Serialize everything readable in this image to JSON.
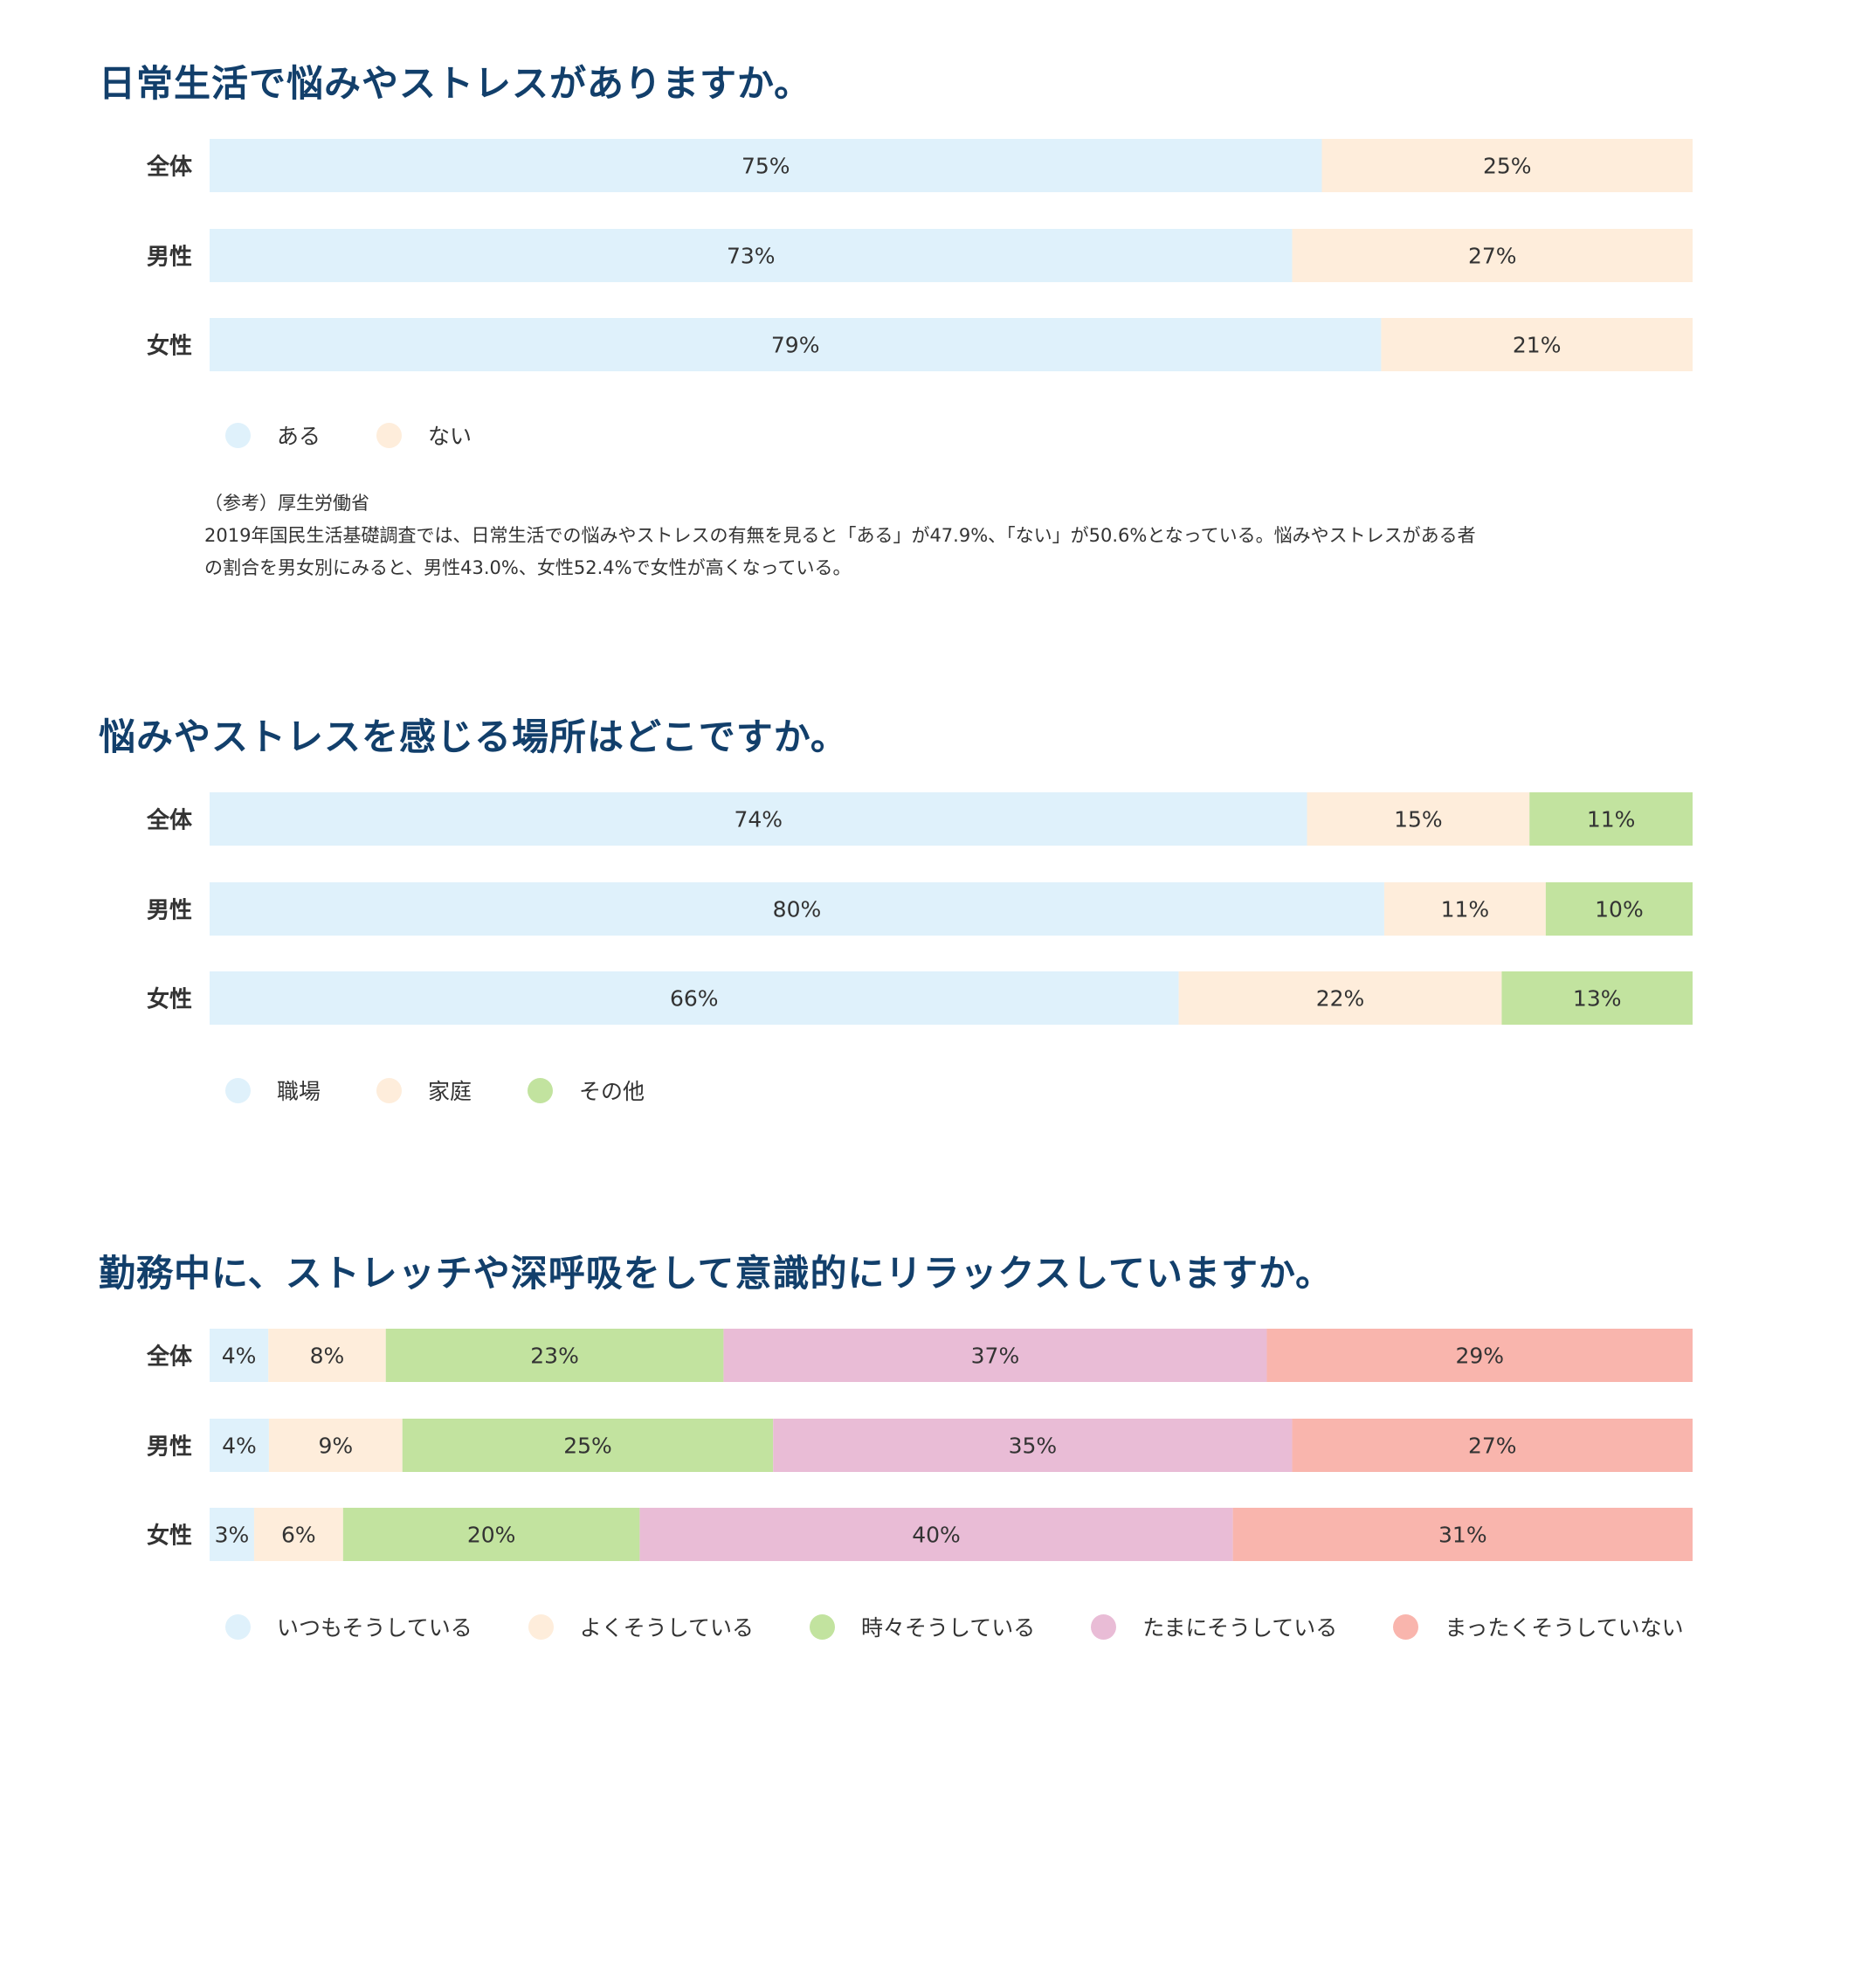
{
  "colors": {
    "title": "#123f6b",
    "light_blue": "#dff1fb",
    "peach": "#feeddb",
    "green": "#c2e39f",
    "pink": "#e9bcd6",
    "salmon": "#f9b5ad"
  },
  "chart_data": [
    {
      "type": "bar",
      "orientation": "horizontal",
      "stacked": true,
      "title": "日常生活で悩みやストレスがありますか。",
      "categories": [
        "全体",
        "男性",
        "女性"
      ],
      "series": [
        {
          "name": "ある",
          "color": "#dff1fb",
          "values": [
            75,
            73,
            79
          ]
        },
        {
          "name": "ない",
          "color": "#feeddb",
          "values": [
            25,
            27,
            21
          ]
        }
      ],
      "value_suffix": "%",
      "legend_position": "bottom-left",
      "grid": false
    },
    {
      "type": "bar",
      "orientation": "horizontal",
      "stacked": true,
      "title": "悩みやストレスを感じる場所はどこですか。",
      "categories": [
        "全体",
        "男性",
        "女性"
      ],
      "series": [
        {
          "name": "職場",
          "color": "#dff1fb",
          "values": [
            74,
            80,
            66
          ]
        },
        {
          "name": "家庭",
          "color": "#feeddb",
          "values": [
            15,
            11,
            22
          ]
        },
        {
          "name": "その他",
          "color": "#c2e39f",
          "values": [
            11,
            10,
            13
          ]
        }
      ],
      "value_suffix": "%",
      "legend_position": "bottom-left",
      "grid": false
    },
    {
      "type": "bar",
      "orientation": "horizontal",
      "stacked": true,
      "title": "勤務中に、ストレッチや深呼吸をして意識的にリラックスしていますか。",
      "categories": [
        "全体",
        "男性",
        "女性"
      ],
      "series": [
        {
          "name": "いつもそうしている",
          "color": "#dff1fb",
          "values": [
            4,
            4,
            3
          ]
        },
        {
          "name": "よくそうしている",
          "color": "#feeddb",
          "values": [
            8,
            9,
            6
          ]
        },
        {
          "name": "時々そうしている",
          "color": "#c2e39f",
          "values": [
            23,
            25,
            20
          ]
        },
        {
          "name": "たまにそうしている",
          "color": "#e9bcd6",
          "values": [
            37,
            35,
            40
          ]
        },
        {
          "name": "まったくそうしていない",
          "color": "#f9b5ad",
          "values": [
            29,
            27,
            31
          ]
        }
      ],
      "value_suffix": "%",
      "legend_position": "bottom-left",
      "grid": false
    }
  ],
  "note": {
    "source": "（参考）厚生労働省",
    "line1": "2019年国民生活基礎調査では、日常生活での悩みやストレスの有無を見ると「ある」が47.9%、「ない」が50.6%となっている。悩みやストレスがある者",
    "line2": "の割合を男女別にみると、男性43.0%、女性52.4%で女性が高くなっている。"
  }
}
